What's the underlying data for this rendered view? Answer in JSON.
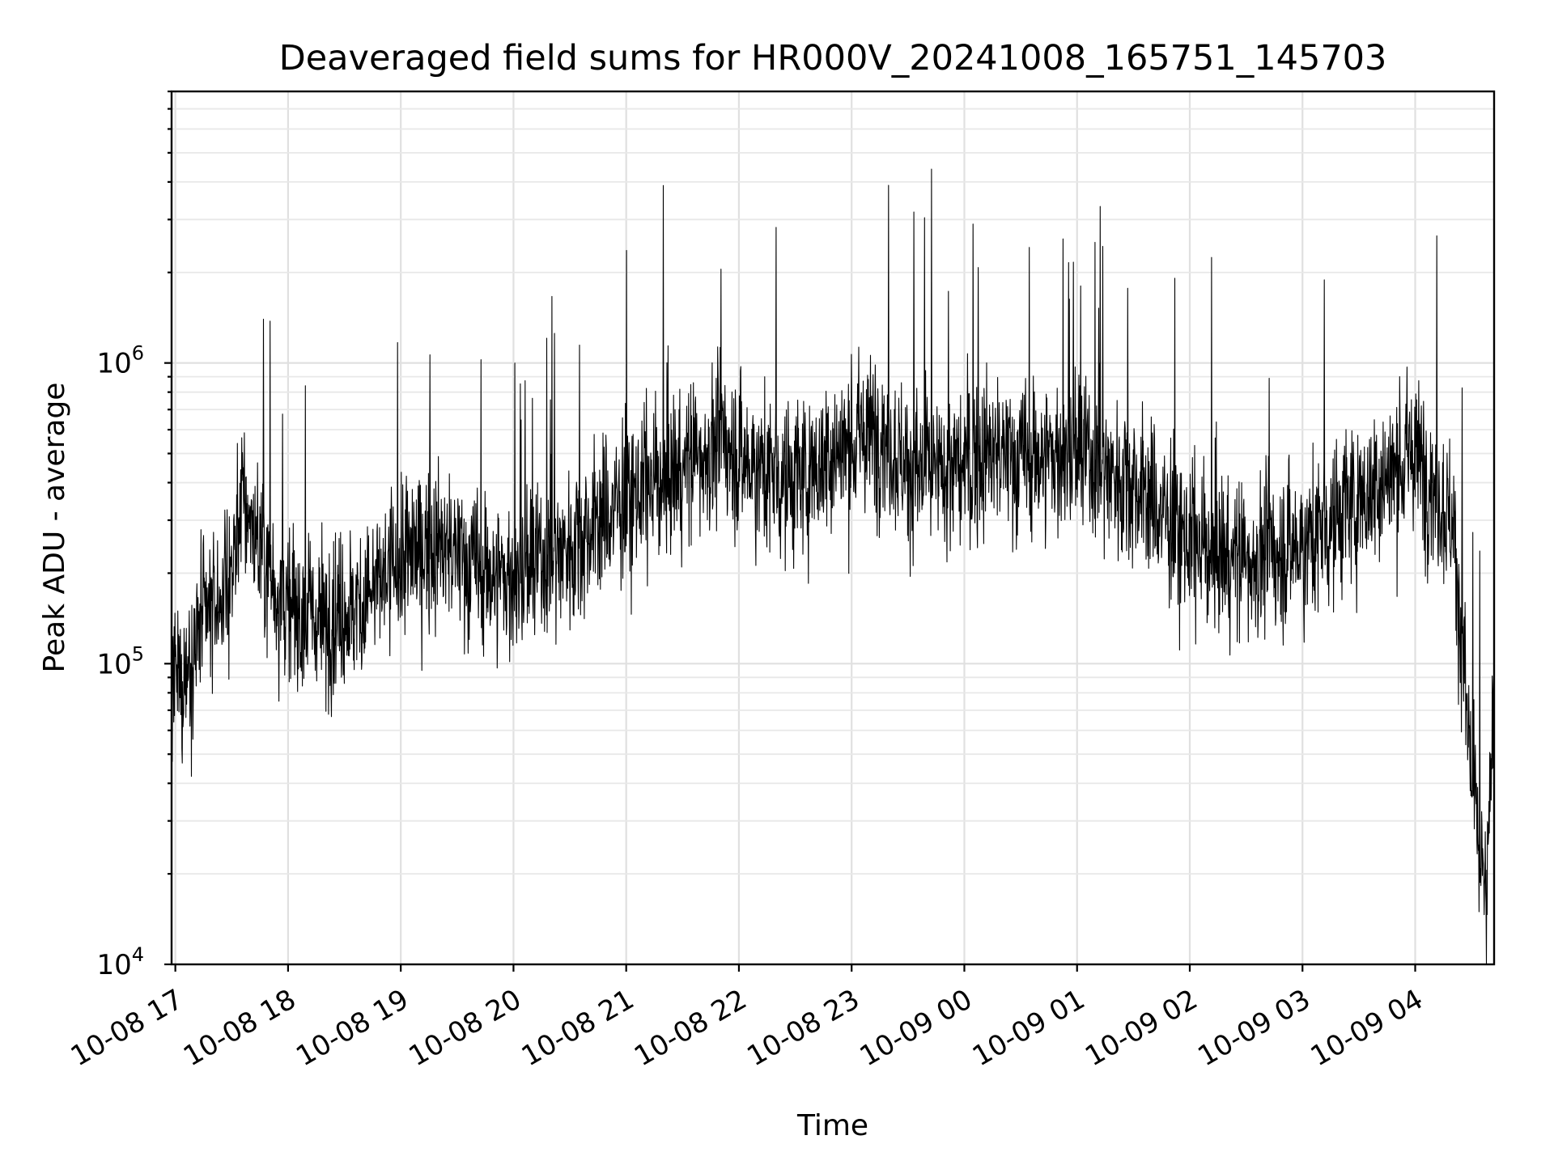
{
  "chart_data": {
    "type": "line",
    "title": "Deaveraged field sums for HR000V_20241008_165751_145703",
    "xlabel": "Time",
    "ylabel": "Peak ADU - average",
    "yscale": "log",
    "ylim": [
      10000,
      8000000
    ],
    "xlim": [
      "2024-10-08 16:58",
      "2024-10-09 04:42"
    ],
    "grid": true,
    "line_color": "#000000",
    "x_ticks": [
      {
        "t": "2024-10-08 17:00",
        "label": "10-08 17"
      },
      {
        "t": "2024-10-08 18:00",
        "label": "10-08 18"
      },
      {
        "t": "2024-10-08 19:00",
        "label": "10-08 19"
      },
      {
        "t": "2024-10-08 20:00",
        "label": "10-08 20"
      },
      {
        "t": "2024-10-08 21:00",
        "label": "10-08 21"
      },
      {
        "t": "2024-10-08 22:00",
        "label": "10-08 22"
      },
      {
        "t": "2024-10-08 23:00",
        "label": "10-08 23"
      },
      {
        "t": "2024-10-09 00:00",
        "label": "10-09 00"
      },
      {
        "t": "2024-10-09 01:00",
        "label": "10-09 01"
      },
      {
        "t": "2024-10-09 02:00",
        "label": "10-09 02"
      },
      {
        "t": "2024-10-09 03:00",
        "label": "10-09 03"
      },
      {
        "t": "2024-10-09 04:00",
        "label": "10-09 04"
      }
    ],
    "y_ticks": [
      {
        "value": 10000,
        "base": "10",
        "exp": "4"
      },
      {
        "value": 100000,
        "base": "10",
        "exp": "5"
      },
      {
        "value": 1000000,
        "base": "10",
        "exp": "6"
      }
    ],
    "series": [
      {
        "x": [
          "2024-10-08 16:58",
          "2024-10-08 17:05",
          "2024-10-08 17:10",
          "2024-10-08 17:20",
          "2024-10-08 17:30",
          "2024-10-08 17:35",
          "2024-10-08 17:40",
          "2024-10-08 17:50",
          "2024-10-08 18:00",
          "2024-10-08 18:20",
          "2024-10-08 18:40",
          "2024-10-08 19:00",
          "2024-10-08 19:15",
          "2024-10-08 19:30",
          "2024-10-08 19:45",
          "2024-10-08 20:00",
          "2024-10-08 20:30",
          "2024-10-08 21:00",
          "2024-10-08 21:30",
          "2024-10-08 21:40",
          "2024-10-08 21:55",
          "2024-10-08 22:00",
          "2024-10-08 22:30",
          "2024-10-08 22:50",
          "2024-10-08 23:15",
          "2024-10-08 23:30",
          "2024-10-08 23:45",
          "2024-10-09 00:00",
          "2024-10-09 00:10",
          "2024-10-09 00:30",
          "2024-10-09 01:00",
          "2024-10-09 01:30",
          "2024-10-09 02:00",
          "2024-10-09 02:30",
          "2024-10-09 03:00",
          "2024-10-09 03:30",
          "2024-10-09 04:00",
          "2024-10-09 04:20",
          "2024-10-09 04:32",
          "2024-10-09 04:38",
          "2024-10-09 04:42"
        ],
        "y": [
          80000,
          90000,
          120000,
          150000,
          200000,
          350000,
          300000,
          200000,
          150000,
          140000,
          160000,
          220000,
          250000,
          230000,
          200000,
          190000,
          250000,
          350000,
          450000,
          500000,
          550000,
          480000,
          400000,
          500000,
          600000,
          450000,
          420000,
          450000,
          500000,
          480000,
          500000,
          400000,
          250000,
          220000,
          250000,
          350000,
          500000,
          300000,
          30000,
          15000,
          100000
        ]
      }
    ]
  }
}
